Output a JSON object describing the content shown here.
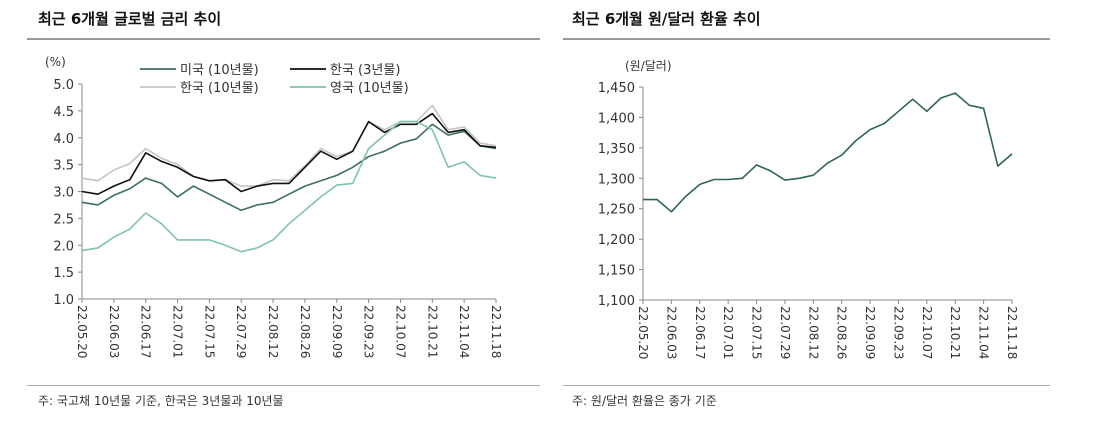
{
  "left_panel": {
    "title": "최근 6개월 글로벌 금리 추이",
    "note": "주: 국고채 10년물 기준, 한국은 3년물과 10년물"
  },
  "right_panel": {
    "title": "최근 6개월 원/달러 환율 추이",
    "note": "주: 원/달러 환율은 종가 기준"
  },
  "chart_data": [
    {
      "type": "line",
      "title": "최근 6개월 글로벌 금리 추이",
      "ylabel": "(%)",
      "ylim": [
        1.0,
        5.0
      ],
      "yticks": [
        "1.0",
        "1.5",
        "2.0",
        "2.5",
        "3.0",
        "3.5",
        "4.0",
        "4.5",
        "5.0"
      ],
      "xticks": [
        "22.05.20",
        "22.06.03",
        "22.06.17",
        "22.07.01",
        "22.07.15",
        "22.07.29",
        "22.08.12",
        "22.08.26",
        "22.09.09",
        "22.09.23",
        "22.10.07",
        "22.10.21",
        "22.11.04",
        "22.11.18"
      ],
      "x": [
        "22.05.20",
        "22.05.27",
        "22.06.03",
        "22.06.10",
        "22.06.17",
        "22.06.24",
        "22.07.01",
        "22.07.08",
        "22.07.15",
        "22.07.22",
        "22.07.29",
        "22.08.05",
        "22.08.12",
        "22.08.19",
        "22.08.26",
        "22.09.02",
        "22.09.09",
        "22.09.16",
        "22.09.23",
        "22.09.30",
        "22.10.07",
        "22.10.14",
        "22.10.21",
        "22.10.28",
        "22.11.04",
        "22.11.11",
        "22.11.18"
      ],
      "grid": false,
      "legend": "top",
      "series": [
        {
          "name": "미국 (10년물)",
          "color": "#3d6f5f",
          "values": [
            2.8,
            2.75,
            2.93,
            3.05,
            3.25,
            3.15,
            2.9,
            3.1,
            2.95,
            2.8,
            2.65,
            2.75,
            2.8,
            2.95,
            3.1,
            3.2,
            3.3,
            3.45,
            3.65,
            3.75,
            3.9,
            3.98,
            4.25,
            4.05,
            4.12,
            3.85,
            3.8
          ]
        },
        {
          "name": "한국 (3년물)",
          "color": "#111111",
          "values": [
            3.0,
            2.95,
            3.1,
            3.22,
            3.72,
            3.56,
            3.45,
            3.28,
            3.2,
            3.22,
            3.0,
            3.1,
            3.15,
            3.15,
            3.45,
            3.75,
            3.6,
            3.75,
            4.3,
            4.1,
            4.25,
            4.25,
            4.45,
            4.1,
            4.15,
            3.85,
            3.82
          ]
        },
        {
          "name": "한국 (10년물)",
          "color": "#c4c4c4",
          "values": [
            3.25,
            3.2,
            3.4,
            3.52,
            3.8,
            3.62,
            3.5,
            3.28,
            3.2,
            3.22,
            3.1,
            3.1,
            3.22,
            3.2,
            3.48,
            3.8,
            3.65,
            3.75,
            4.3,
            4.15,
            4.3,
            4.3,
            4.6,
            4.15,
            4.2,
            3.9,
            3.85
          ]
        },
        {
          "name": "영국 (10년물)",
          "color": "#80c3ae",
          "values": [
            1.9,
            1.95,
            2.15,
            2.3,
            2.6,
            2.4,
            2.1,
            2.1,
            2.1,
            2.0,
            1.88,
            1.95,
            2.1,
            2.4,
            2.65,
            2.9,
            3.12,
            3.15,
            3.8,
            4.05,
            4.3,
            4.3,
            4.15,
            3.45,
            3.55,
            3.3,
            3.25
          ]
        }
      ]
    },
    {
      "type": "line",
      "title": "최근 6개월 원/달러 환율 추이",
      "ylabel": "(원/달러)",
      "ylim": [
        1100,
        1450
      ],
      "yticks": [
        "1,100",
        "1,150",
        "1,200",
        "1,250",
        "1,300",
        "1,350",
        "1,400",
        "1,450"
      ],
      "xticks": [
        "22.05.20",
        "22.06.03",
        "22.06.17",
        "22.07.01",
        "22.07.15",
        "22.07.29",
        "22.08.12",
        "22.08.26",
        "22.09.09",
        "22.09.23",
        "22.10.07",
        "22.10.21",
        "22.11.04",
        "22.11.18"
      ],
      "x": [
        "22.05.20",
        "22.05.27",
        "22.06.03",
        "22.06.10",
        "22.06.17",
        "22.06.24",
        "22.07.01",
        "22.07.08",
        "22.07.15",
        "22.07.22",
        "22.07.29",
        "22.08.05",
        "22.08.12",
        "22.08.19",
        "22.08.26",
        "22.09.02",
        "22.09.09",
        "22.09.16",
        "22.09.23",
        "22.09.30",
        "22.10.07",
        "22.10.14",
        "22.10.21",
        "22.10.28",
        "22.11.04",
        "22.11.11",
        "22.11.18"
      ],
      "grid": false,
      "series": [
        {
          "color": "#2f6552",
          "values": [
            1265,
            1265,
            1245,
            1270,
            1290,
            1298,
            1298,
            1300,
            1322,
            1312,
            1297,
            1300,
            1305,
            1325,
            1338,
            1362,
            1380,
            1390,
            1410,
            1430,
            1410,
            1432,
            1440,
            1420,
            1415,
            1320,
            1340
          ]
        }
      ]
    }
  ]
}
